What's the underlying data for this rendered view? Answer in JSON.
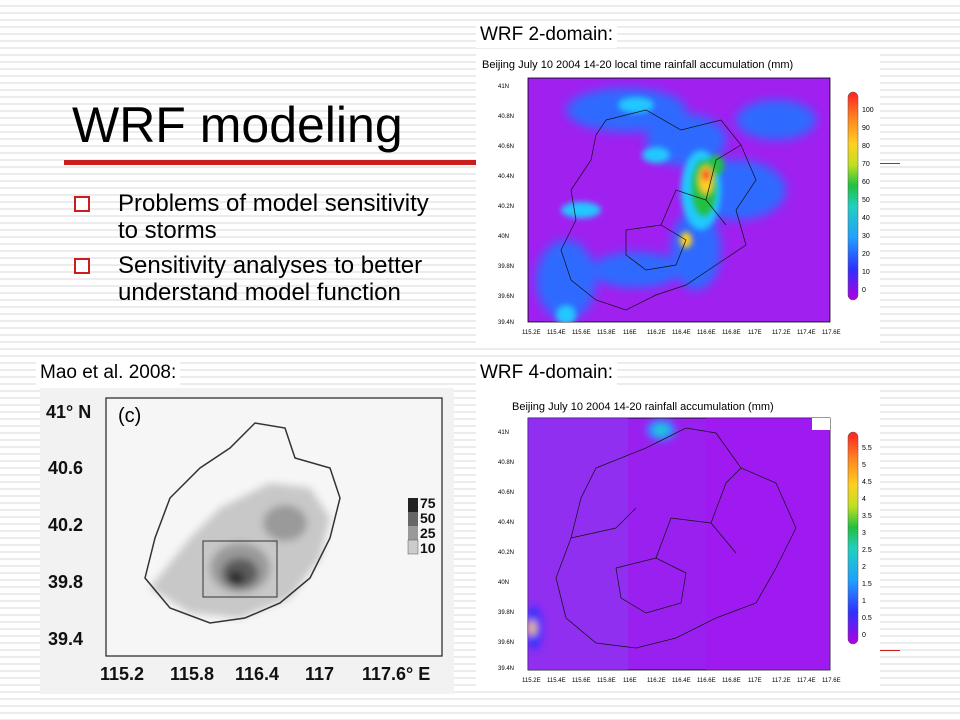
{
  "slide": {
    "title": "WRF modeling",
    "bullets": [
      "Problems of model sensitivity to storms",
      "Sensitivity analyses to better understand model function"
    ]
  },
  "labels": {
    "top_right": "WRF 2-domain:",
    "bottom_left": "Mao et al. 2008:",
    "bottom_right": "WRF 4-domain:"
  },
  "wrf2": {
    "title": "Beijing July 10 2004 14-20 local time rainfall accumulation (mm)",
    "y_ticks": [
      "41N",
      "40.8N",
      "40.6N",
      "40.4N",
      "40.2N",
      "40N",
      "39.8N",
      "39.6N",
      "39.4N"
    ],
    "x_ticks": [
      "115.2E",
      "115.4E",
      "115.6E",
      "115.8E",
      "116E",
      "116.2E",
      "116.4E",
      "116.6E",
      "116.8E",
      "117E",
      "117.2E",
      "117.4E",
      "117.6E"
    ],
    "colorbar": [
      "100",
      "90",
      "80",
      "70",
      "60",
      "50",
      "40",
      "30",
      "20",
      "10",
      "0"
    ]
  },
  "wrf4": {
    "title": "Beijing July 10 2004 14-20 rainfall accumulation (mm)",
    "y_ticks": [
      "41N",
      "40.8N",
      "40.6N",
      "40.4N",
      "40.2N",
      "40N",
      "39.8N",
      "39.6N",
      "39.4N"
    ],
    "x_ticks": [
      "115.2E",
      "115.4E",
      "115.6E",
      "115.8E",
      "116E",
      "116.2E",
      "116.4E",
      "116.6E",
      "116.8E",
      "117E",
      "117.2E",
      "117.4E",
      "117.6E"
    ],
    "colorbar": [
      "5.5",
      "5",
      "4.5",
      "4",
      "3.5",
      "3",
      "2.5",
      "2",
      "1.5",
      "1",
      "0.5",
      "0"
    ]
  },
  "mao": {
    "panel_tag": "(c)",
    "y_ticks": [
      "41° N",
      "40.6",
      "40.2",
      "39.8",
      "39.4"
    ],
    "x_ticks": [
      "115.2",
      "115.8",
      "116.4",
      "117",
      "117.6° E"
    ],
    "legend": [
      "75",
      "50",
      "25",
      "10"
    ]
  },
  "colors": {
    "bullet": "#c81e1e",
    "accent_bar": "#c81e1e",
    "wrf_background": "#a020f0",
    "rain_peak": "#ff2a2a"
  }
}
